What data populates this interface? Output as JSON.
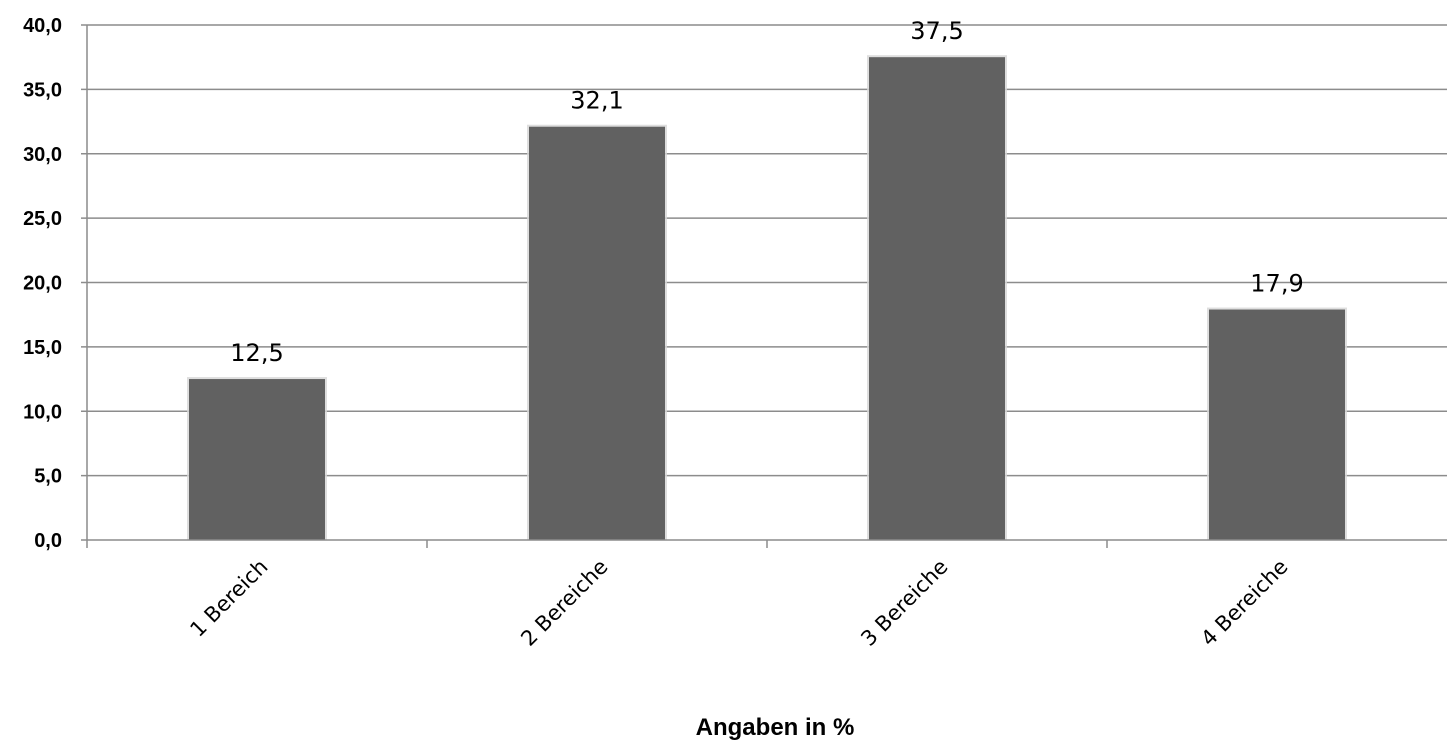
{
  "chart_data": {
    "type": "bar",
    "categories": [
      "1 Bereich",
      "2 Bereiche",
      "3 Bereiche",
      "4 Bereiche"
    ],
    "values": [
      12.5,
      32.1,
      37.5,
      17.9
    ],
    "value_labels": [
      "12,5",
      "32,1",
      "37,5",
      "17,9"
    ],
    "title": "",
    "xlabel": "Angaben in %",
    "ylabel": "",
    "ylim": [
      0,
      40
    ],
    "yticks": [
      "0,0",
      "5,0",
      "10,0",
      "15,0",
      "20,0",
      "25,0",
      "30,0",
      "35,0",
      "40,0"
    ],
    "grid": true,
    "legend": "none",
    "colors": {
      "bar": "#616161",
      "grid": "#8c8c8c",
      "axis": "#8c8c8c"
    }
  }
}
